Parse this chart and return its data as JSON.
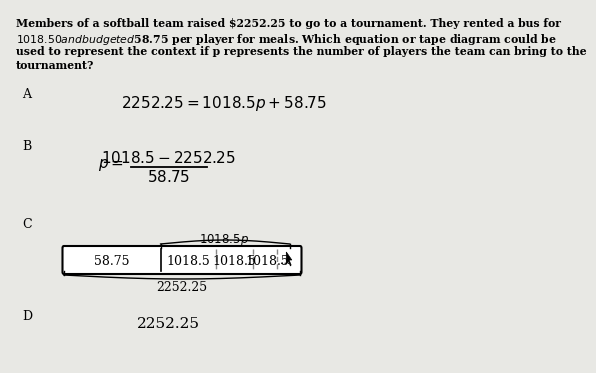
{
  "background_color": "#e8e8e4",
  "question_lines": [
    "Members of a softball team raised $2252.25 to go to a tournament. They rented a bus for",
    "$1018.50 and budgeted $58.75 per player for meals. Which equation or tape diagram could be",
    "used to represent the context if p represents the number of players the team can bring to the",
    "tournament?"
  ],
  "option_A_label": "A",
  "option_A_eq_left": "2252.25",
  "option_A_eq_eq": " = ",
  "option_A_eq_right": "1018.5",
  "option_A_eq_p": "p",
  "option_A_eq_plus": " + 58.75",
  "option_A_full": "2252.25 = 1018.5p + 58.75",
  "option_B_label": "B",
  "option_B_p_eq": "p =",
  "option_B_num": "1018.5 – 2252.25",
  "option_B_den": "58.75",
  "option_C_label": "C",
  "option_C_brace_label": "1018.5p",
  "option_C_box1": "58.75",
  "option_C_box2": "1018.5",
  "option_C_box3": "1018.5",
  "option_C_box4": "1018.5",
  "option_C_box5": "...",
  "option_C_brace_bottom": "2252.25",
  "option_D_label": "D",
  "option_D_bottom": "2252.25"
}
